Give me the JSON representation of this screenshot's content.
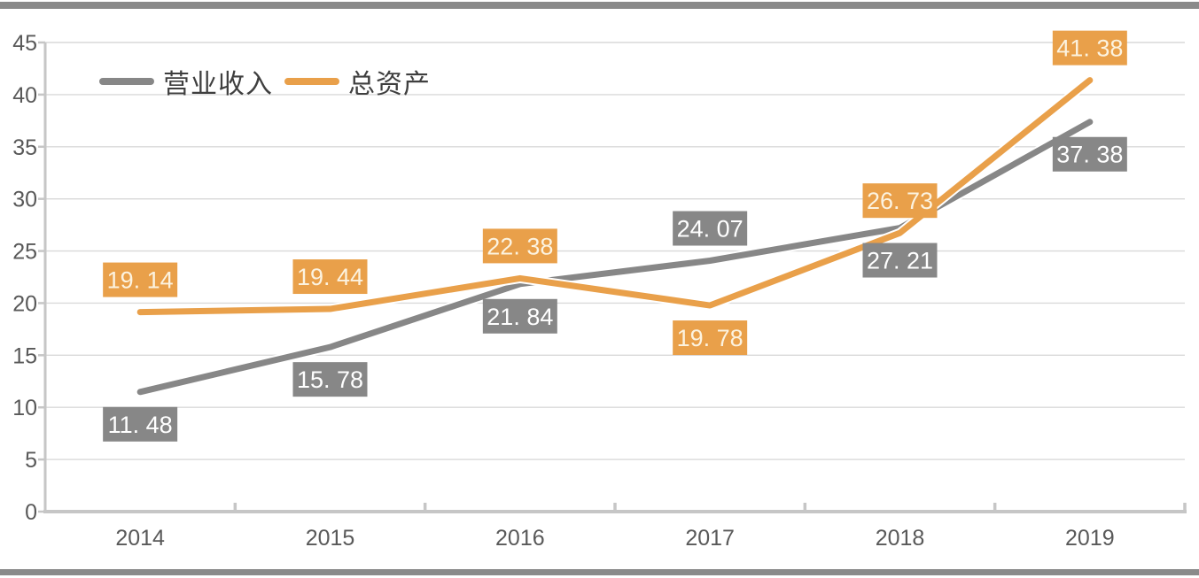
{
  "page": {
    "background": "#ffffff",
    "top_bar_color": "#8a8a8a",
    "bottom_bar_color": "#8a8a8a"
  },
  "chart_data": {
    "type": "line",
    "title": "",
    "categories": [
      "2014",
      "2015",
      "2016",
      "2017",
      "2018",
      "2019"
    ],
    "series": [
      {
        "name": "营业收入",
        "color": "#878787",
        "label_text_color": "#ffffff",
        "values": [
          11.48,
          15.78,
          21.84,
          24.07,
          27.21,
          37.38
        ],
        "label_placement": [
          "below",
          "below",
          "below",
          "above",
          "below",
          "below"
        ]
      },
      {
        "name": "总资产",
        "color": "#e9a04a",
        "label_text_color": "#fcf3e0",
        "values": [
          19.14,
          19.44,
          22.38,
          19.78,
          26.73,
          41.38
        ],
        "label_placement": [
          "above",
          "above",
          "above",
          "below",
          "above",
          "above"
        ]
      }
    ],
    "ylim": [
      0,
      45
    ],
    "ytick_step": 5,
    "ytick_labels": [
      "0",
      "5",
      "10",
      "15",
      "20",
      "25",
      "30",
      "35",
      "40",
      "45"
    ],
    "grid": true,
    "legend_position": "top-left",
    "gridline_color": "#d9d9d9",
    "axis_color": "#c6c6c6",
    "tick_label_color": "#595959",
    "data_label_format": "0.00"
  }
}
